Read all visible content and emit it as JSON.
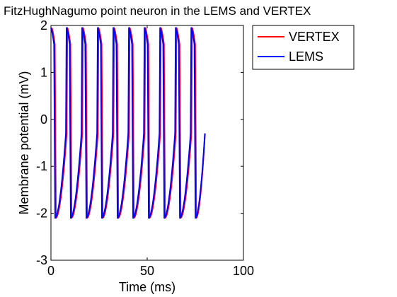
{
  "chart_data": {
    "type": "line",
    "title": "FitzHughNagumo point neuron in the LEMS and VERTEX",
    "xlabel": "Time (ms)",
    "ylabel": "Membrane potential (mV)",
    "xlim": [
      0,
      100
    ],
    "ylim": [
      -3,
      2
    ],
    "xticks": [
      0,
      50,
      100
    ],
    "yticks": [
      -3,
      -2,
      -1,
      0,
      1,
      2
    ],
    "grid": false,
    "legend": "outside-top-right",
    "duration_ms": 80,
    "spike_times_ms": [
      0,
      8.1,
      16.2,
      24.3,
      32.4,
      40.5,
      48.6,
      56.7,
      64.8,
      72.9
    ],
    "v_peak": 1.95,
    "v_trough": -2.1,
    "series": [
      {
        "name": "VERTEX",
        "color": "#ff0000"
      },
      {
        "name": "LEMS",
        "color": "#0000ff"
      }
    ]
  }
}
